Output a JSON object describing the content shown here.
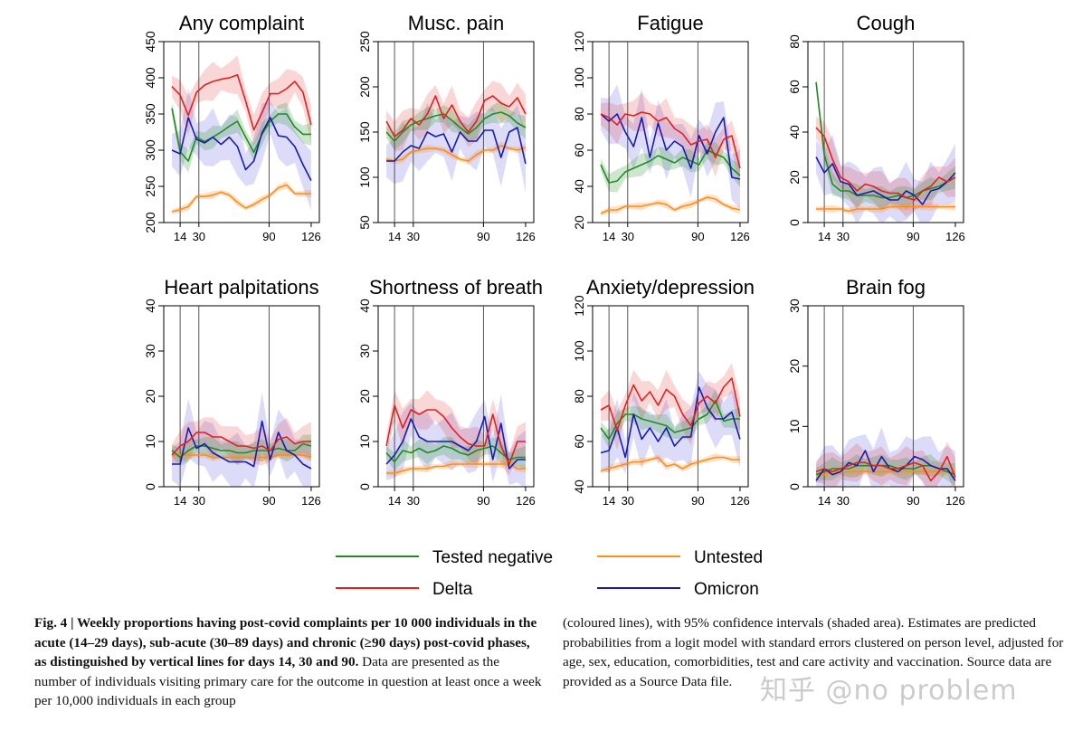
{
  "chart_data": [
    {
      "type": "line",
      "title": "Any complaint",
      "ylim": [
        200,
        450
      ],
      "yticks": [
        200,
        250,
        300,
        350,
        400,
        450
      ],
      "xticks": [
        14,
        30,
        90,
        126
      ],
      "vlines": [
        14,
        30,
        90
      ],
      "x": [
        7,
        14,
        21,
        28,
        35,
        42,
        49,
        56,
        63,
        70,
        77,
        84,
        91,
        98,
        105,
        112,
        119,
        126
      ],
      "series": [
        {
          "name": "Tested negative",
          "values": [
            358,
            298,
            285,
            318,
            312,
            318,
            325,
            333,
            340,
            318,
            297,
            322,
            340,
            350,
            350,
            332,
            322,
            322
          ]
        },
        {
          "name": "Delta",
          "values": [
            388,
            376,
            348,
            380,
            390,
            395,
            398,
            400,
            404,
            368,
            328,
            352,
            378,
            378,
            385,
            395,
            380,
            335
          ]
        },
        {
          "name": "Omicron",
          "values": [
            300,
            295,
            345,
            315,
            310,
            318,
            308,
            318,
            305,
            273,
            285,
            324,
            345,
            320,
            318,
            305,
            280,
            258
          ]
        },
        {
          "name": "Untested",
          "values": [
            215,
            218,
            222,
            236,
            236,
            238,
            242,
            238,
            228,
            220,
            225,
            232,
            238,
            248,
            252,
            240,
            240,
            240
          ]
        }
      ]
    },
    {
      "type": "line",
      "title": "Musc. pain",
      "ylim": [
        50,
        250
      ],
      "yticks": [
        50,
        100,
        150,
        200,
        250
      ],
      "xticks": [
        14,
        30,
        90,
        126
      ],
      "vlines": [
        14,
        30,
        90
      ],
      "x": [
        7,
        14,
        21,
        28,
        35,
        42,
        49,
        56,
        63,
        70,
        77,
        84,
        91,
        98,
        105,
        112,
        119,
        126
      ],
      "series": [
        {
          "name": "Tested negative",
          "values": [
            150,
            140,
            150,
            158,
            162,
            165,
            168,
            170,
            163,
            155,
            148,
            155,
            165,
            170,
            172,
            168,
            160,
            155
          ]
        },
        {
          "name": "Delta",
          "values": [
            162,
            145,
            152,
            165,
            158,
            170,
            190,
            165,
            180,
            162,
            150,
            162,
            185,
            190,
            182,
            178,
            188,
            170
          ]
        },
        {
          "name": "Omicron",
          "values": [
            118,
            118,
            128,
            135,
            132,
            150,
            145,
            148,
            128,
            150,
            140,
            140,
            152,
            152,
            122,
            150,
            155,
            115
          ]
        },
        {
          "name": "Untested",
          "values": [
            120,
            118,
            120,
            128,
            130,
            132,
            132,
            130,
            125,
            120,
            118,
            125,
            130,
            130,
            135,
            132,
            130,
            133
          ]
        }
      ]
    },
    {
      "type": "line",
      "title": "Fatigue",
      "ylim": [
        20,
        120
      ],
      "yticks": [
        20,
        40,
        60,
        80,
        100,
        120
      ],
      "xticks": [
        14,
        30,
        90,
        126
      ],
      "vlines": [
        14,
        30,
        90
      ],
      "x": [
        7,
        14,
        21,
        28,
        35,
        42,
        49,
        56,
        63,
        70,
        77,
        84,
        91,
        98,
        105,
        112,
        119,
        126
      ],
      "series": [
        {
          "name": "Tested negative",
          "values": [
            52,
            42,
            43,
            48,
            50,
            52,
            54,
            57,
            55,
            53,
            56,
            54,
            52,
            60,
            58,
            56,
            50,
            46
          ]
        },
        {
          "name": "Delta",
          "values": [
            80,
            78,
            74,
            80,
            79,
            81,
            80,
            76,
            78,
            72,
            69,
            63,
            65,
            66,
            56,
            66,
            68,
            50
          ]
        },
        {
          "name": "Omicron",
          "values": [
            80,
            76,
            80,
            70,
            62,
            78,
            56,
            75,
            60,
            65,
            62,
            50,
            68,
            58,
            70,
            78,
            45,
            44
          ]
        },
        {
          "name": "Untested",
          "values": [
            25,
            27,
            27,
            29,
            29,
            29,
            30,
            31,
            30,
            27,
            29,
            30,
            32,
            34,
            33,
            30,
            28,
            27
          ]
        }
      ]
    },
    {
      "type": "line",
      "title": "Cough",
      "ylim": [
        0,
        80
      ],
      "yticks": [
        0,
        20,
        40,
        60,
        80
      ],
      "xticks": [
        14,
        30,
        90,
        126
      ],
      "vlines": [
        14,
        30,
        90
      ],
      "x": [
        7,
        14,
        21,
        28,
        35,
        42,
        49,
        56,
        63,
        70,
        77,
        84,
        91,
        98,
        105,
        112,
        119,
        126
      ],
      "series": [
        {
          "name": "Tested negative",
          "values": [
            62,
            30,
            17,
            14,
            14,
            12,
            12,
            12,
            11,
            11,
            12,
            11,
            12,
            14,
            15,
            16,
            18,
            20
          ]
        },
        {
          "name": "Delta",
          "values": [
            42,
            38,
            28,
            20,
            18,
            14,
            17,
            16,
            14,
            13,
            13,
            11,
            10,
            14,
            16,
            20,
            18,
            20
          ]
        },
        {
          "name": "Omicron",
          "values": [
            29,
            22,
            26,
            18,
            17,
            12,
            13,
            14,
            12,
            10,
            10,
            14,
            12,
            8,
            14,
            15,
            18,
            22
          ]
        },
        {
          "name": "Untested",
          "values": [
            6,
            6,
            6,
            6,
            5,
            6,
            6,
            6,
            6,
            7,
            7,
            7,
            7,
            7,
            7,
            7,
            7,
            7
          ]
        }
      ]
    },
    {
      "type": "line",
      "title": "Heart palpitations",
      "ylim": [
        0,
        40
      ],
      "yticks": [
        0,
        10,
        20,
        30,
        40
      ],
      "xticks": [
        14,
        30,
        90,
        126
      ],
      "vlines": [
        14,
        30,
        90
      ],
      "x": [
        7,
        14,
        21,
        28,
        35,
        42,
        49,
        56,
        63,
        70,
        77,
        84,
        91,
        98,
        105,
        112,
        119,
        126
      ],
      "series": [
        {
          "name": "Tested negative",
          "values": [
            8,
            6.5,
            8,
            9,
            9,
            8.5,
            8,
            8,
            7.5,
            7.5,
            8,
            8,
            8,
            8.5,
            8,
            8,
            9.5,
            9
          ]
        },
        {
          "name": "Delta",
          "values": [
            7,
            9,
            10,
            12,
            12,
            11,
            11,
            10,
            9,
            9,
            8.5,
            9,
            8,
            10.5,
            11,
            9.5,
            10,
            10
          ]
        },
        {
          "name": "Omicron",
          "values": [
            5,
            5,
            13,
            8.5,
            9.5,
            7.5,
            6.5,
            5.5,
            5.5,
            5.5,
            4.5,
            14.5,
            6,
            12,
            8,
            7,
            5,
            4
          ]
        },
        {
          "name": "Untested",
          "values": [
            7,
            7,
            7,
            7,
            7,
            6.5,
            6.5,
            6.5,
            6.5,
            6.5,
            6.5,
            6.5,
            6.5,
            7,
            7,
            7,
            7,
            6.5
          ]
        }
      ]
    },
    {
      "type": "line",
      "title": "Shortness of breath",
      "ylim": [
        0,
        40
      ],
      "yticks": [
        0,
        10,
        20,
        30,
        40
      ],
      "xticks": [
        14,
        30,
        90,
        126
      ],
      "vlines": [
        14,
        30,
        90
      ],
      "x": [
        7,
        14,
        21,
        28,
        35,
        42,
        49,
        56,
        63,
        70,
        77,
        84,
        91,
        98,
        105,
        112,
        119,
        126
      ],
      "series": [
        {
          "name": "Tested negative",
          "values": [
            7.5,
            5.5,
            8,
            7.5,
            8.5,
            7.5,
            8,
            9,
            8.5,
            7.5,
            7,
            8,
            8.5,
            9,
            7.5,
            6,
            6.5,
            6.5
          ]
        },
        {
          "name": "Delta",
          "values": [
            9,
            18,
            13,
            17,
            16,
            17,
            17,
            15.5,
            13,
            11,
            9.5,
            9,
            9,
            16,
            9,
            5,
            10,
            10
          ]
        },
        {
          "name": "Omicron",
          "values": [
            5,
            7,
            10,
            15,
            11,
            10,
            10,
            10,
            10,
            9,
            8,
            10,
            15.5,
            6,
            14,
            4,
            6,
            6
          ]
        },
        {
          "name": "Untested",
          "values": [
            3,
            3,
            3.5,
            4,
            4,
            4,
            4.5,
            4.5,
            5,
            5,
            5,
            5,
            5,
            5,
            5,
            5,
            4,
            4
          ]
        }
      ]
    },
    {
      "type": "line",
      "title": "Anxiety/depression",
      "ylim": [
        40,
        120
      ],
      "yticks": [
        40,
        60,
        80,
        100,
        120
      ],
      "xticks": [
        14,
        30,
        90,
        126
      ],
      "vlines": [
        14,
        30,
        90
      ],
      "x": [
        7,
        14,
        21,
        28,
        35,
        42,
        49,
        56,
        63,
        70,
        77,
        84,
        91,
        98,
        105,
        112,
        119,
        126
      ],
      "series": [
        {
          "name": "Tested negative",
          "values": [
            66,
            61,
            68,
            72,
            72,
            70,
            69,
            68,
            67,
            64,
            65,
            66,
            70,
            72,
            78,
            69,
            70,
            70
          ]
        },
        {
          "name": "Delta",
          "values": [
            74,
            76,
            65,
            76,
            85,
            78,
            82,
            76,
            83,
            80,
            72,
            67,
            77,
            80,
            77,
            84,
            88,
            71
          ]
        },
        {
          "name": "Omicron",
          "values": [
            55,
            56,
            66,
            53,
            72,
            61,
            66,
            60,
            66,
            58,
            62,
            62,
            84,
            75,
            70,
            70,
            73,
            61
          ]
        },
        {
          "name": "Untested",
          "values": [
            47,
            48,
            49,
            50,
            51,
            51,
            52,
            53,
            49,
            50,
            48,
            50,
            51,
            52,
            53,
            53,
            52,
            52
          ]
        }
      ]
    },
    {
      "type": "line",
      "title": "Brain fog",
      "ylim": [
        0,
        30
      ],
      "yticks": [
        0,
        10,
        20,
        30
      ],
      "xticks": [
        14,
        30,
        90,
        126
      ],
      "vlines": [
        14,
        30,
        90
      ],
      "x": [
        7,
        14,
        21,
        28,
        35,
        42,
        49,
        56,
        63,
        70,
        77,
        84,
        91,
        98,
        105,
        112,
        119,
        126
      ],
      "series": [
        {
          "name": "Tested negative",
          "values": [
            2,
            2.5,
            3,
            3,
            3,
            3.5,
            3.5,
            3.5,
            3.5,
            3.5,
            3,
            3,
            3,
            3.5,
            3.5,
            3,
            2.5,
            2
          ]
        },
        {
          "name": "Delta",
          "values": [
            2.5,
            3,
            2.5,
            3,
            3.5,
            4,
            4,
            3.5,
            3.5,
            3,
            3,
            3.5,
            4,
            3.5,
            1,
            2.5,
            5,
            1.5
          ]
        },
        {
          "name": "Omicron",
          "values": [
            1,
            3,
            2,
            2.5,
            4,
            3.5,
            6,
            2.5,
            5,
            3,
            2.5,
            3.5,
            5,
            4.5,
            3.5,
            3,
            3,
            1
          ]
        },
        {
          "name": "Untested",
          "values": [
            2,
            2,
            2.5,
            2.5,
            2.5,
            2.5,
            2.5,
            2.5,
            2.5,
            2.5,
            2.5,
            2.5,
            2.5,
            2.5,
            2.5,
            2.5,
            2.5,
            2.5
          ]
        }
      ]
    }
  ],
  "legend": [
    {
      "label": "Tested negative",
      "color": "#228b22"
    },
    {
      "label": "Untested",
      "color": "#ff8c1a"
    },
    {
      "label": "Delta",
      "color": "#e32020"
    },
    {
      "label": "Omicron",
      "color": "#1a1aaf"
    }
  ],
  "colors": {
    "Tested negative": "#228b22",
    "Delta": "#e32020",
    "Omicron": "#1a1aaf",
    "Untested": "#ff8c1a",
    "band_Tested negative": "rgba(34,139,34,0.22)",
    "band_Delta": "rgba(227,32,32,0.18)",
    "band_Omicron": "rgba(60,60,220,0.18)",
    "band_Untested": "rgba(255,140,26,0.25)"
  },
  "caption": {
    "bold": "Fig. 4 | Weekly proportions having post-covid complaints per 10 000 individuals in the acute (14–29 days), sub-acute (30–89 days) and chronic (≥90 days) post-covid phases, as distinguished by vertical lines for days 14, 30 and 90.",
    "left_rest": "Data are presented as the number of individuals visiting primary care for the outcome in question at least once a week per 10,000 individuals in each group",
    "right": "(coloured lines), with 95% confidence intervals (shaded area). Estimates are predicted probabilities from a logit model with standard errors clustered on person level, adjusted for age, sex, education, comorbidities, test and care activity and vaccination. Source data are provided as a Source Data file."
  },
  "watermark": "知乎 @no problem"
}
